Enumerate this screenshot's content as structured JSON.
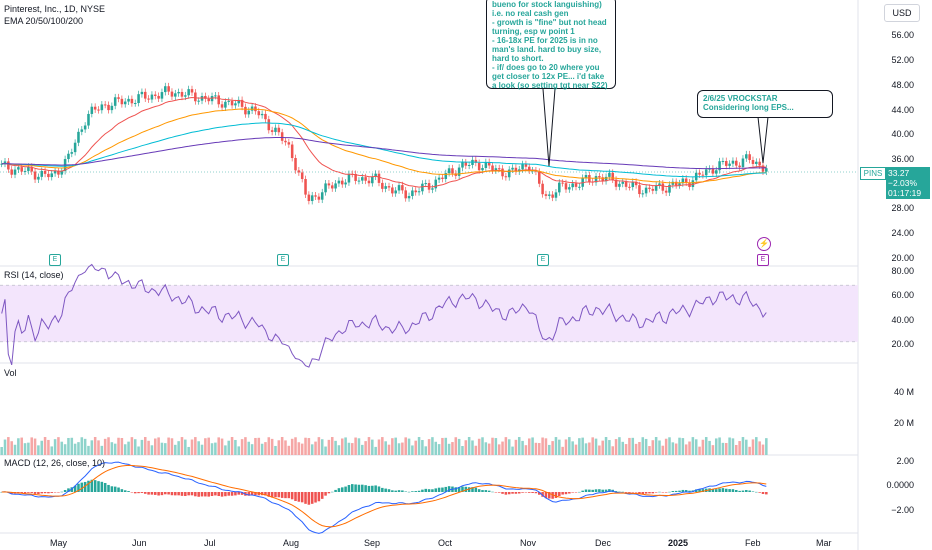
{
  "header": {
    "symbol_title": "Pinterest, Inc., 1D, NYSE",
    "ema_label": "EMA 20/50/100/200",
    "currency_button": "USD"
  },
  "price_axis": [
    "56.00",
    "52.00",
    "48.00",
    "44.00",
    "40.00",
    "36.00",
    "28.00",
    "24.00",
    "20.00"
  ],
  "price_tag": {
    "symbol": "PINS",
    "price": "33.27",
    "change": "−2.03%",
    "countdown": "01:17:19"
  },
  "rsi": {
    "label": "RSI (14, close)",
    "axis": [
      "80.00",
      "60.00",
      "40.00",
      "20.00"
    ]
  },
  "volume": {
    "label": "Vol",
    "axis": [
      "40 M",
      "20 M"
    ]
  },
  "macd": {
    "label": "MACD (12, 26, close, 10)",
    "axis": [
      "2.00",
      "0.0000",
      "−2.00"
    ]
  },
  "time_axis": [
    "May",
    "Jun",
    "Jul",
    "Aug",
    "Sep",
    "Oct",
    "Nov",
    "Dec",
    "2025",
    "Feb",
    "Mar"
  ],
  "earnings_markers": [
    "E",
    "E",
    "E",
    "E"
  ],
  "notes": {
    "long": "bueno for stock languishing) i.e. no real cash gen\n- growth is \"fine\" but not head turning, esp w point 1\n- 16-18x PE for 2025 is in no man's land. hard to buy size, hard to short.\n- if/ does go to 20 where you get closer to 12x PE... i'd take a look (so setting tgt near $22)",
    "short": "2/6/25 VROCKSTAR\nConsidering long EPS..."
  },
  "colors": {
    "up": "#26a69a",
    "down": "#ef5350",
    "ema20": "#ef5350",
    "ema50": "#ff9800",
    "ema100": "#00bcd4",
    "ema200": "#673ab7",
    "rsi": "#7e57c2",
    "rsi_band": "#f3e5fc"
  },
  "chart_data": {
    "type": "candlestick",
    "x": [
      "Apr 1",
      "Apr 8",
      "Apr 15",
      "Apr 22",
      "Apr 29",
      "May 6",
      "May 13",
      "May 20",
      "May 28",
      "Jun 3",
      "Jun 10",
      "Jun 17",
      "Jun 24",
      "Jul 1",
      "Jul 8",
      "Jul 15",
      "Jul 22",
      "Jul 29",
      "Aug 5",
      "Aug 12",
      "Aug 19",
      "Aug 26",
      "Sep 3",
      "Sep 9",
      "Sep 16",
      "Sep 23",
      "Sep 30",
      "Oct 7",
      "Oct 14",
      "Oct 21",
      "Oct 28",
      "Nov 4",
      "Nov 11",
      "Nov 18",
      "Nov 25",
      "Dec 2",
      "Dec 9",
      "Dec 16",
      "Dec 23",
      "Dec 30",
      "Jan 6",
      "Jan 13",
      "Jan 21",
      "Jan 27",
      "Feb 3",
      "Feb 6"
    ],
    "close": [
      33.5,
      33.0,
      32.5,
      32.0,
      35.0,
      41.0,
      42.5,
      43.0,
      43.5,
      44.0,
      44.5,
      44.0,
      43.5,
      43.0,
      42.5,
      41.5,
      39.0,
      36.0,
      28.5,
      30.0,
      31.5,
      31.8,
      31.5,
      30.0,
      29.5,
      30.5,
      32.0,
      33.5,
      34.0,
      33.0,
      32.5,
      34.0,
      29.0,
      30.5,
      31.0,
      32.0,
      31.5,
      30.5,
      30.0,
      30.5,
      31.0,
      32.0,
      33.5,
      34.0,
      34.5,
      33.27
    ],
    "price_range": [
      19,
      58
    ],
    "rsi_range": [
      20,
      80
    ],
    "macd_range": [
      -3,
      2.5
    ]
  }
}
